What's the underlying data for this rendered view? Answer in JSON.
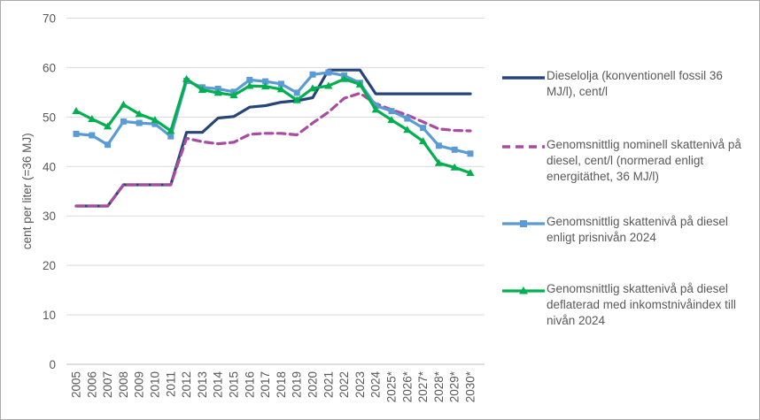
{
  "window": {
    "background": "#ffffff",
    "border_color": "#ababab",
    "text_color": "#595959",
    "gridline_color": "#d9d9d9",
    "axisline_color": "#bfbfbf"
  },
  "chart_data": {
    "type": "line",
    "title": "",
    "xlabel": "",
    "ylabel": "cent per liter (=36 MJ)",
    "ylim": [
      0,
      70
    ],
    "yticks": [
      0,
      10,
      20,
      30,
      40,
      50,
      60,
      70
    ],
    "grid": true,
    "legend_position": "right",
    "categories": [
      "2005",
      "2006",
      "2007",
      "2008",
      "2009",
      "2010",
      "2011",
      "2012",
      "2013",
      "2014",
      "2015",
      "2016",
      "2017",
      "2018",
      "2019",
      "2020",
      "2021",
      "2022",
      "2023",
      "2024",
      "2025*",
      "2026*",
      "2027*",
      "2028*",
      "2029*",
      "2030*"
    ],
    "series": [
      {
        "name": "Dieselolja (konventionell fossil 36 MJ/l), cent/l",
        "color": "#264478",
        "style": "solid",
        "marker": "none",
        "values": [
          32.0,
          32.0,
          32.0,
          36.3,
          36.3,
          36.3,
          36.3,
          46.9,
          46.9,
          49.8,
          50.1,
          52.0,
          52.3,
          53.0,
          53.3,
          53.9,
          59.5,
          59.5,
          59.5,
          54.7,
          54.7,
          54.7,
          54.7,
          54.7,
          54.7,
          54.7
        ]
      },
      {
        "name": "Genomsnittlig nominell skattenivå på diesel, cent/l (normerad enligt energitäthet, 36 MJ/l)",
        "color": "#a94ba0",
        "style": "dashed",
        "marker": "none",
        "values": [
          32.0,
          32.0,
          32.0,
          36.3,
          36.3,
          36.3,
          36.3,
          45.7,
          45.0,
          44.6,
          44.9,
          46.5,
          46.7,
          46.7,
          46.4,
          48.8,
          51.0,
          53.8,
          54.8,
          52.7,
          51.5,
          50.4,
          49.0,
          47.6,
          47.3,
          47.2
        ]
      },
      {
        "name": "Genomsnittlig skattenivå på diesel enligt prisnivån 2024",
        "color": "#5b9bd5",
        "style": "solid",
        "marker": "square",
        "values": [
          46.6,
          46.3,
          44.4,
          49.1,
          48.8,
          48.6,
          46.1,
          57.3,
          56.0,
          55.7,
          55.1,
          57.5,
          57.2,
          56.7,
          54.9,
          58.6,
          59.0,
          58.4,
          56.9,
          52.3,
          51.2,
          49.7,
          47.8,
          44.2,
          43.4,
          42.6
        ]
      },
      {
        "name": "Genomsnittlig skattenivå på diesel deflaterad med inkomstnivåindex till nivån 2024",
        "color": "#00b050",
        "style": "solid",
        "marker": "triangle",
        "values": [
          51.2,
          49.6,
          48.1,
          52.5,
          50.6,
          49.4,
          47.2,
          57.7,
          55.5,
          54.9,
          54.4,
          56.3,
          56.2,
          55.6,
          53.4,
          55.8,
          56.3,
          57.7,
          56.6,
          51.5,
          49.4,
          47.4,
          45.1,
          40.7,
          39.8,
          38.7
        ]
      }
    ]
  }
}
